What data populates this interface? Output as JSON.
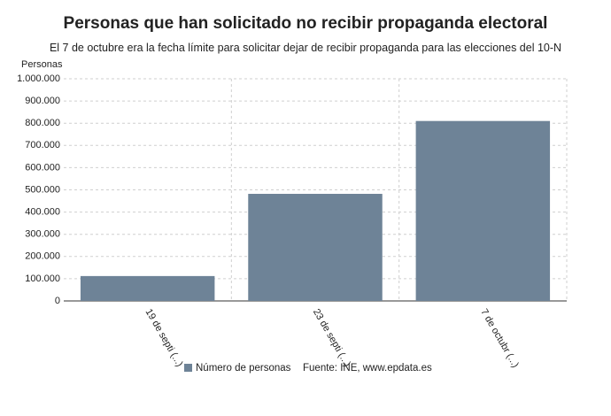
{
  "chart_data": {
    "type": "bar",
    "title": "Personas que han solicitado no recibir propaganda electoral",
    "subtitle": "El 7 de octubre era la fecha límite para solicitar dejar de recibir propaganda para las elecciones del 10-N",
    "y_label": "Personas",
    "categories": [
      "19 de septi (...)",
      "23 de septi (...)",
      "7 de octubr (...)"
    ],
    "series": [
      {
        "name": "Número de personas",
        "color": "#6e8397",
        "values": [
          112000,
          482000,
          810000
        ]
      }
    ],
    "source": "Fuente: INE, www.epdata.es",
    "ylim": [
      0,
      1000000
    ],
    "yticks": [
      0,
      {
        "value": 100000,
        "label": "100.000"
      },
      {
        "value": 200000,
        "label": "200.000"
      },
      {
        "value": 300000,
        "label": "300.000"
      },
      {
        "value": 400000,
        "label": "400.000"
      },
      {
        "value": 500000,
        "label": "500.000"
      },
      {
        "value": 600000,
        "label": "600.000"
      },
      {
        "value": 700000,
        "label": "700.000"
      },
      {
        "value": 800000,
        "label": "800.000"
      },
      {
        "value": 900000,
        "label": "900.000"
      },
      {
        "value": 1000000,
        "label": "1.000.000"
      }
    ],
    "grid": true
  }
}
